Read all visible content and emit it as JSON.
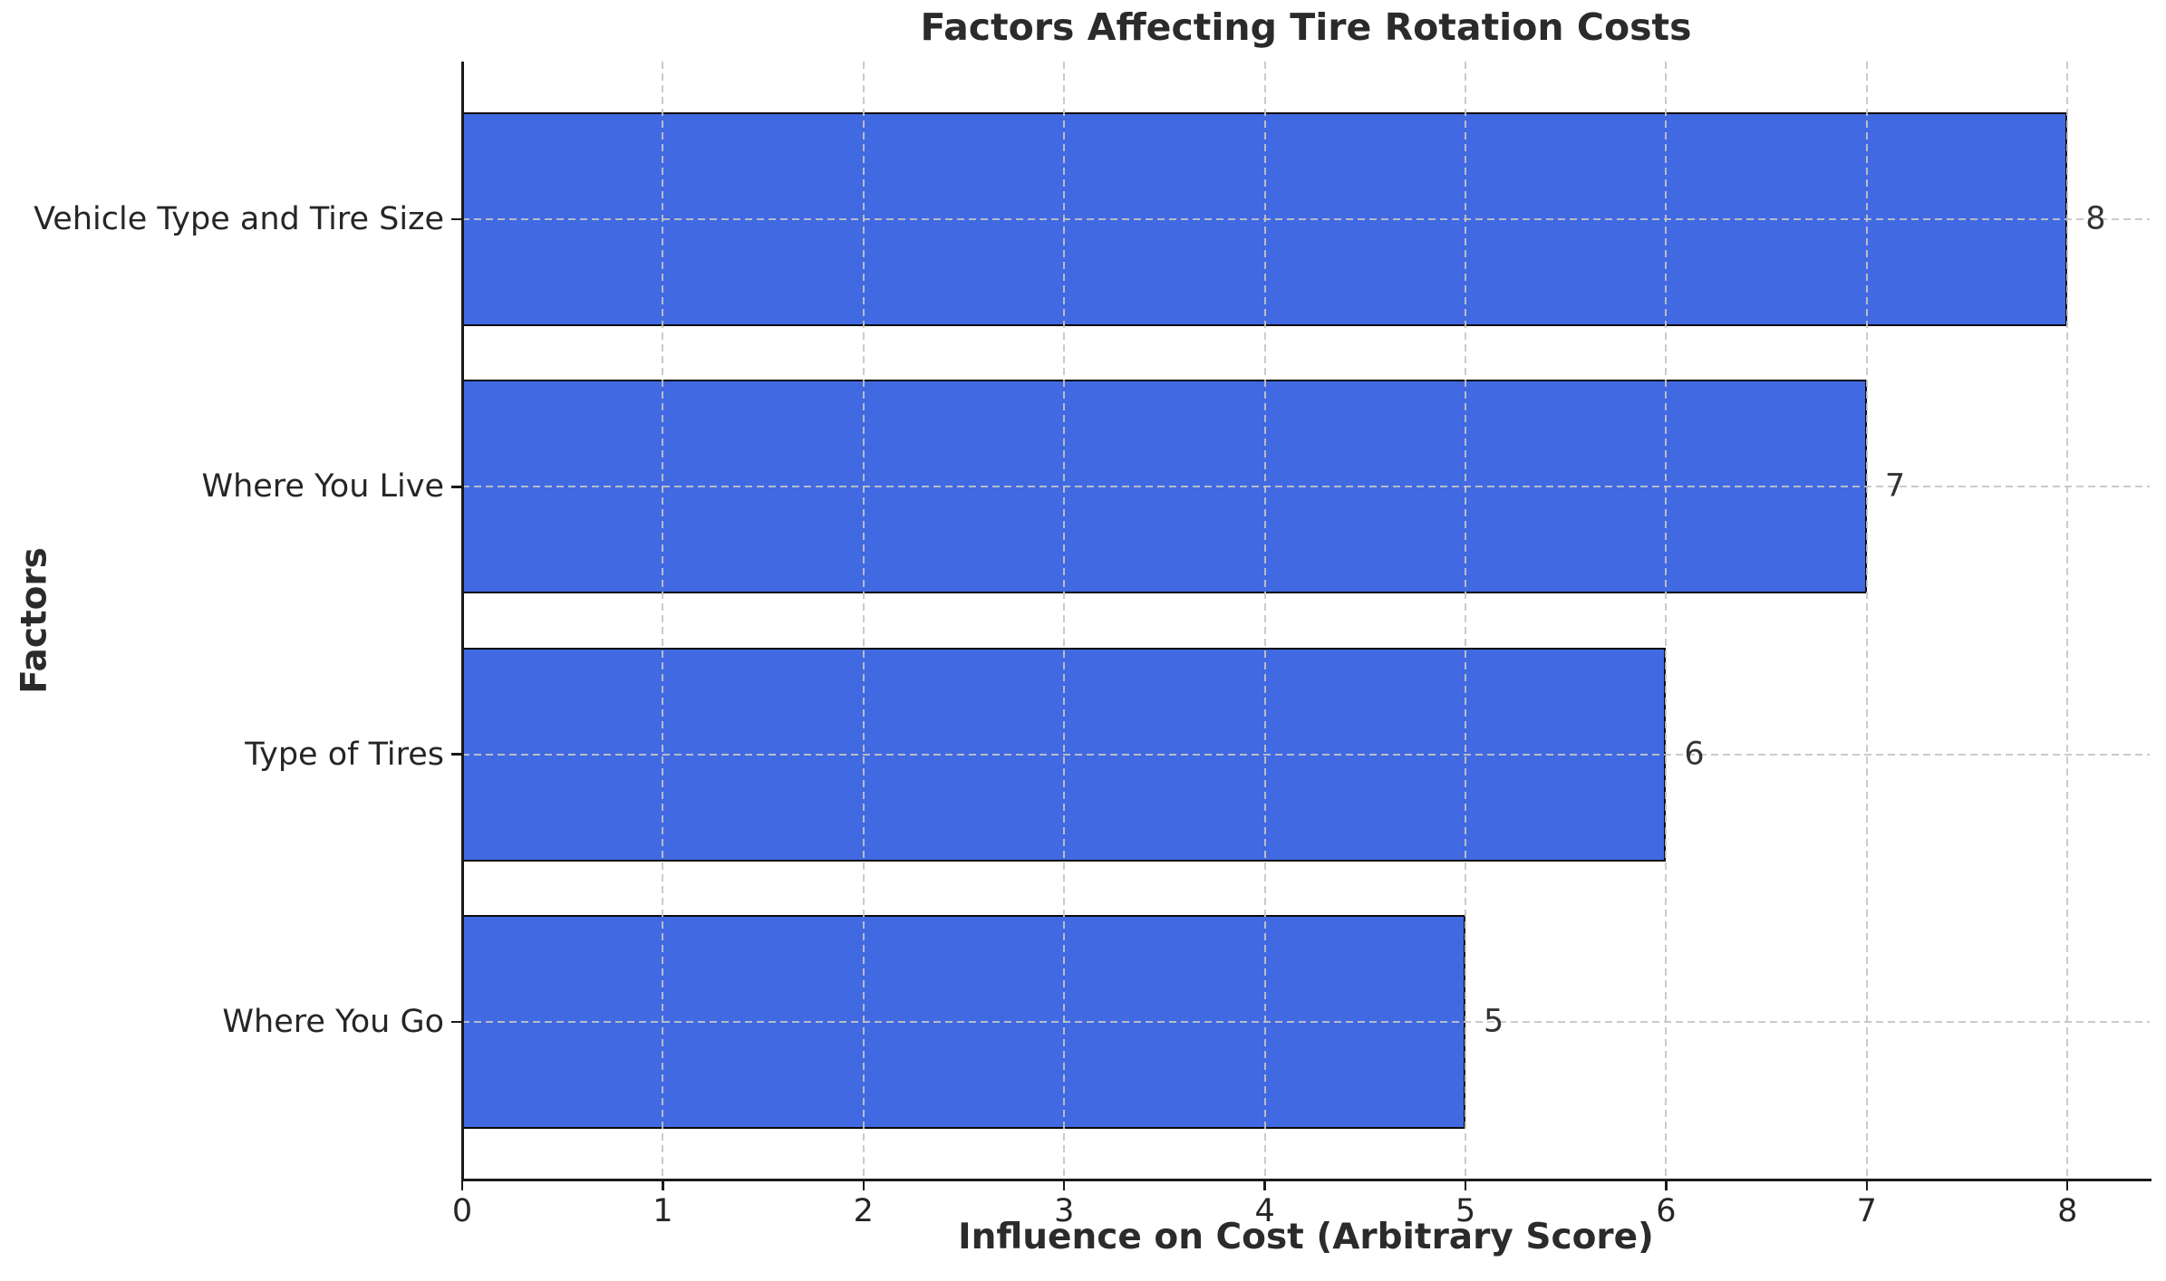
{
  "chart_data": {
    "type": "bar",
    "orientation": "horizontal",
    "title": "Factors Affecting Tire Rotation Costs",
    "xlabel": "Influence on Cost (Arbitrary Score)",
    "ylabel": "Factors",
    "categories": [
      "Vehicle Type and Tire Size",
      "Where You Live",
      "Type of Tires",
      "Where You Go"
    ],
    "values": [
      8,
      7,
      6,
      5
    ],
    "xticks": [
      0,
      1,
      2,
      3,
      4,
      5,
      6,
      7,
      8
    ],
    "xlim": [
      0,
      8.41
    ],
    "grid": true,
    "grid_style": "dashed",
    "legend": null,
    "colors": {
      "bar_fill": "#4169E1",
      "bar_edge": "#000000",
      "grid_line": "#c5c5c5",
      "axis_line": "#1a1a1a",
      "text": "#2b2b2b",
      "background": "#ffffff"
    }
  }
}
